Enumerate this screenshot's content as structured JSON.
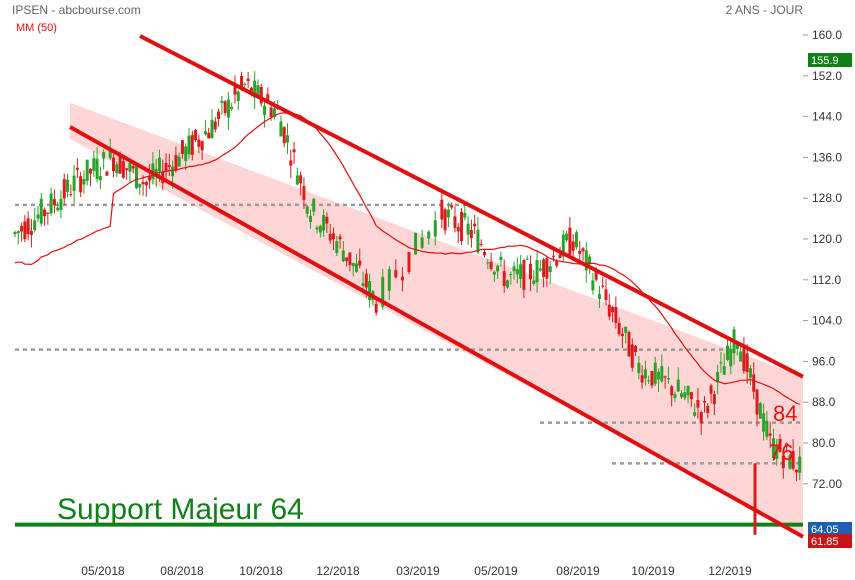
{
  "header": {
    "source": "IPSEN - abcbourse.com",
    "period": "2 ANS - JOUR",
    "ma_label": "MM (50)"
  },
  "chart_data": {
    "type": "candlestick",
    "title": "IPSEN - abcbourse.com",
    "subtitle": "2 ANS - JOUR",
    "y_ticks": [
      160,
      152,
      144,
      136,
      128,
      120,
      112,
      104,
      96,
      88,
      80,
      72
    ],
    "y_tick_labels": [
      "160.0",
      "152.0",
      "144.0",
      "136.0",
      "128.0",
      "120.0",
      "112.0",
      "104.0",
      "96.0",
      "88.0",
      "80.0",
      "72.00"
    ],
    "ylim": [
      60.5,
      162.5
    ],
    "x_ticks": [
      "05/2018",
      "08/2018",
      "10/2018",
      "12/2018",
      "03/2019",
      "05/2019",
      "08/2019",
      "10/2019",
      "12/2019"
    ],
    "colors": {
      "up": "#29a329",
      "down": "#d91c1c",
      "ma": "#e01010",
      "channel": "#e01010",
      "channel_fill": "#ffd6d6",
      "support": "#11801b",
      "level": "#9a9a9a"
    },
    "price_path": [
      {
        "date": "2018-01",
        "close": 121
      },
      {
        "date": "2018-02",
        "close": 126
      },
      {
        "date": "2018-03",
        "close": 132
      },
      {
        "date": "2018-04",
        "close": 136
      },
      {
        "date": "2018-05",
        "close": 131
      },
      {
        "date": "2018-06",
        "close": 136
      },
      {
        "date": "2018-07",
        "close": 142
      },
      {
        "date": "2018-08",
        "close": 150
      },
      {
        "date": "2018-09",
        "close": 145
      },
      {
        "date": "2018-10",
        "close": 126
      },
      {
        "date": "2018-11",
        "close": 118
      },
      {
        "date": "2018-12",
        "close": 108
      },
      {
        "date": "2019-02",
        "close": 125
      },
      {
        "date": "2019-03",
        "close": 121
      },
      {
        "date": "2019-04",
        "close": 112
      },
      {
        "date": "2019-05",
        "close": 114
      },
      {
        "date": "2019-06",
        "close": 120
      },
      {
        "date": "2019-07",
        "close": 108
      },
      {
        "date": "2019-08",
        "close": 95
      },
      {
        "date": "2019-09",
        "close": 91
      },
      {
        "date": "2019-10",
        "close": 86
      },
      {
        "date": "2019-11",
        "close": 101
      },
      {
        "date": "2019-12",
        "close": 80
      },
      {
        "date": "2020-01",
        "close": 75
      }
    ],
    "moving_average": {
      "name": "MM (50)",
      "period": 50
    },
    "levels": [
      {
        "name": "support",
        "value": 64,
        "label": "Support Majeur  64"
      },
      {
        "value": 126.7
      },
      {
        "value": 98.3
      },
      {
        "value": 84,
        "label": "84"
      },
      {
        "value": 76,
        "label": "76"
      }
    ],
    "channel": {
      "upper": [
        {
          "date": "2018-04",
          "value": 138
        },
        {
          "date": "2020-01",
          "value": 93
        }
      ],
      "lower": [
        {
          "date": "2018-04",
          "value": 135
        },
        {
          "date": "2020-01",
          "value": 62
        }
      ]
    },
    "price_badges": [
      {
        "label": "155.9",
        "value": 155.9,
        "color": "#11801b"
      },
      {
        "label": "64.05",
        "value": 64.05,
        "color": "#1f5fb0"
      },
      {
        "label": "61.85",
        "value": 61.85,
        "color": "#c81414"
      }
    ],
    "annotations": {
      "level_84": "84",
      "level_76": "76",
      "support": "Support Majeur  64"
    }
  }
}
